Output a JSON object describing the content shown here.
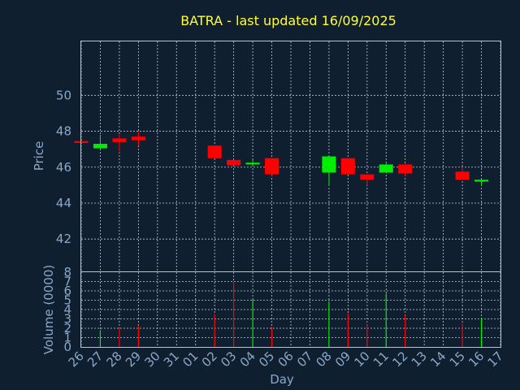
{
  "chart_data": {
    "type": "candlestick",
    "title": "BATRA - last updated 16/09/2025",
    "xlabel": "Day",
    "ylabel_price": "Price",
    "ylabel_volume": "Volume (0000)",
    "x_ticks": [
      "26",
      "27",
      "28",
      "29",
      "30",
      "31",
      "01",
      "02",
      "03",
      "04",
      "05",
      "06",
      "07",
      "08",
      "09",
      "10",
      "11",
      "12",
      "13",
      "14",
      "15",
      "16",
      "17"
    ],
    "price_ticks": [
      42,
      44,
      46,
      48,
      50
    ],
    "price_range": [
      40.2,
      53.0
    ],
    "volume_ticks": [
      0,
      1,
      2,
      3,
      4,
      5,
      6,
      7,
      8
    ],
    "volume_range": [
      0,
      8
    ],
    "colors": {
      "up": "#00ee00",
      "down": "#ff0000"
    },
    "candles": [
      {
        "day": "26",
        "open": 47.45,
        "close": 47.35,
        "high": 47.45,
        "low": 47.35,
        "volume": 0.0
      },
      {
        "day": "27",
        "open": 47.05,
        "close": 47.3,
        "high": 47.8,
        "low": 47.0,
        "volume": 1.8
      },
      {
        "day": "28",
        "open": 47.6,
        "close": 47.4,
        "high": 47.8,
        "low": 46.8,
        "volume": 2.0
      },
      {
        "day": "29",
        "open": 47.7,
        "close": 47.5,
        "high": 48.0,
        "low": 47.2,
        "volume": 2.3
      },
      {
        "day": "02",
        "open": 47.2,
        "close": 46.5,
        "high": 47.2,
        "low": 46.5,
        "volume": 3.5
      },
      {
        "day": "03",
        "open": 46.4,
        "close": 46.1,
        "high": 46.4,
        "low": 46.1,
        "volume": 7.0
      },
      {
        "day": "04",
        "open": 46.15,
        "close": 46.25,
        "high": 46.4,
        "low": 46.05,
        "volume": 5.1
      },
      {
        "day": "05",
        "open": 46.5,
        "close": 45.6,
        "high": 46.5,
        "low": 45.5,
        "volume": 2.0
      },
      {
        "day": "08",
        "open": 45.7,
        "close": 46.6,
        "high": 46.6,
        "low": 45.0,
        "volume": 4.8
      },
      {
        "day": "09",
        "open": 46.5,
        "close": 45.6,
        "high": 46.5,
        "low": 45.6,
        "volume": 3.6
      },
      {
        "day": "10",
        "open": 45.6,
        "close": 45.3,
        "high": 45.6,
        "low": 45.0,
        "volume": 2.4
      },
      {
        "day": "11",
        "open": 45.7,
        "close": 46.15,
        "high": 46.2,
        "low": 45.7,
        "volume": 5.7
      },
      {
        "day": "12",
        "open": 46.15,
        "close": 45.65,
        "high": 46.2,
        "low": 45.5,
        "volume": 3.4
      },
      {
        "day": "15",
        "open": 45.75,
        "close": 45.3,
        "high": 46.0,
        "low": 45.3,
        "volume": 2.5
      },
      {
        "day": "16",
        "open": 45.2,
        "close": 45.3,
        "high": 45.3,
        "low": 45.0,
        "volume": 3.1
      }
    ]
  }
}
